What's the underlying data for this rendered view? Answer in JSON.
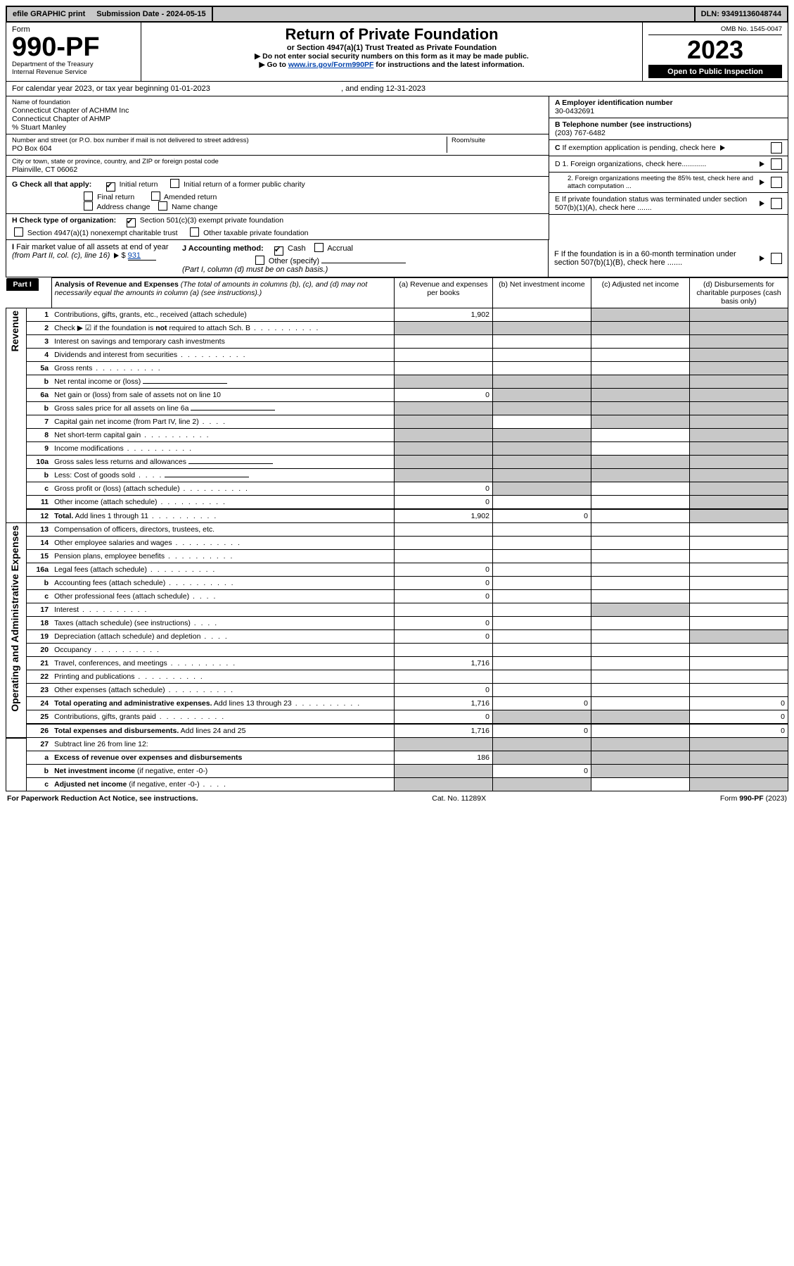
{
  "topbar": {
    "efile": "efile GRAPHIC print",
    "submission": "Submission Date - 2024-05-15",
    "dln": "DLN: 93491136048744"
  },
  "header": {
    "form_word": "Form",
    "form_no": "990-PF",
    "dept1": "Department of the Treasury",
    "dept2": "Internal Revenue Service",
    "title": "Return of Private Foundation",
    "subtitle": "or Section 4947(a)(1) Trust Treated as Private Foundation",
    "instr1": "▶ Do not enter social security numbers on this form as it may be made public.",
    "instr2_pre": "▶ Go to ",
    "instr2_link": "www.irs.gov/Form990PF",
    "instr2_post": " for instructions and the latest information.",
    "omb": "OMB No. 1545-0047",
    "year": "2023",
    "open": "Open to Public Inspection"
  },
  "cal": {
    "label": "For calendar year 2023, or tax year beginning ",
    "begin": "01-01-2023",
    "mid": " , and ending ",
    "end": "12-31-2023"
  },
  "meta": {
    "name_lbl": "Name of foundation",
    "name1": "Connecticut Chapter of ACHMM Inc",
    "name2": "Connecticut Chapter of AHMP",
    "name3": "% Stuart Manley",
    "addr_lbl": "Number and street (or P.O. box number if mail is not delivered to street address)",
    "addr": "PO Box 604",
    "room_lbl": "Room/suite",
    "city_lbl": "City or town, state or province, country, and ZIP or foreign postal code",
    "city": "Plainville, CT  06062",
    "A_lbl": "A Employer identification number",
    "A_val": "30-0432691",
    "B_lbl": "B Telephone number (see instructions)",
    "B_val": "(203) 767-6482",
    "C_lbl": "C If exemption application is pending, check here",
    "D1_lbl": "D 1. Foreign organizations, check here............",
    "D2_lbl": "2. Foreign organizations meeting the 85% test, check here and attach computation ...",
    "E_lbl": "E  If private foundation status was terminated under section 507(b)(1)(A), check here .......",
    "F_lbl": "F  If the foundation is in a 60-month termination under section 507(b)(1)(B), check here .......",
    "G_lbl": "G Check all that apply:",
    "G_opts": [
      "Initial return",
      "Initial return of a former public charity",
      "Final return",
      "Amended return",
      "Address change",
      "Name change"
    ],
    "H_lbl": "H Check type of organization:",
    "H_opts": [
      "Section 501(c)(3) exempt private foundation",
      "Section 4947(a)(1) nonexempt charitable trust",
      "Other taxable private foundation"
    ],
    "I_lbl": "I Fair market value of all assets at end of year (from Part II, col. (c), line 16) ",
    "I_val": "931",
    "J_lbl": "J Accounting method:",
    "J_opts": [
      "Cash",
      "Accrual",
      "Other (specify)"
    ],
    "J_note": "(Part I, column (d) must be on cash basis.)"
  },
  "part1": {
    "label": "Part I",
    "title": "Analysis of Revenue and Expenses",
    "title_note": " (The total of amounts in columns (b), (c), and (d) may not necessarily equal the amounts in column (a) (see instructions).)",
    "cols": {
      "a": "(a)   Revenue and expenses per books",
      "b": "(b)   Net investment income",
      "c": "(c)   Adjusted net income",
      "d": "(d)   Disbursements for charitable purposes (cash basis only)"
    },
    "sections": {
      "rev": "Revenue",
      "exp": "Operating and Administrative Expenses"
    },
    "rows": [
      {
        "n": "1",
        "t": "Contributions, gifts, grants, etc., received (attach schedule)",
        "a": "1,902",
        "d_shade": true,
        "c_shade": true
      },
      {
        "n": "2",
        "t": "Check ▶ ☑ if the foundation is <b>not</b> required to attach Sch. B",
        "dots": true,
        "a_shade": true,
        "b_shade": true,
        "c_shade": true,
        "d_shade": true
      },
      {
        "n": "3",
        "t": "Interest on savings and temporary cash investments",
        "d_shade": true
      },
      {
        "n": "4",
        "t": "Dividends and interest from securities",
        "dots": true,
        "d_shade": true
      },
      {
        "n": "5a",
        "t": "Gross rents",
        "dots": true,
        "d_shade": true
      },
      {
        "n": "b",
        "t": "Net rental income or (loss)",
        "uline": true,
        "a_shade": true,
        "b_shade": true,
        "c_shade": true,
        "d_shade": true
      },
      {
        "n": "6a",
        "t": "Net gain or (loss) from sale of assets not on line 10",
        "a": "0",
        "b_shade": true,
        "c_shade": true,
        "d_shade": true
      },
      {
        "n": "b",
        "t": "Gross sales price for all assets on line 6a",
        "uline": true,
        "a_shade": true,
        "b_shade": true,
        "c_shade": true,
        "d_shade": true
      },
      {
        "n": "7",
        "t": "Capital gain net income (from Part IV, line 2)",
        "dots_s": true,
        "a_shade": true,
        "c_shade": true,
        "d_shade": true
      },
      {
        "n": "8",
        "t": "Net short-term capital gain",
        "dots": true,
        "a_shade": true,
        "b_shade": true,
        "d_shade": true
      },
      {
        "n": "9",
        "t": "Income modifications",
        "dots": true,
        "a_shade": true,
        "b_shade": true,
        "d_shade": true
      },
      {
        "n": "10a",
        "t": "Gross sales less returns and allowances",
        "uline": true,
        "a_shade": true,
        "b_shade": true,
        "c_shade": true,
        "d_shade": true
      },
      {
        "n": "b",
        "t": "Less: Cost of goods sold",
        "dots_s": true,
        "uline": true,
        "a_shade": true,
        "b_shade": true,
        "c_shade": true,
        "d_shade": true
      },
      {
        "n": "c",
        "t": "Gross profit or (loss) (attach schedule)",
        "dots": true,
        "a": "0",
        "b_shade": true,
        "d_shade": true
      },
      {
        "n": "11",
        "t": "Other income (attach schedule)",
        "dots": true,
        "a": "0",
        "d_shade": true
      },
      {
        "n": "12",
        "t": "<b>Total.</b> Add lines 1 through 11",
        "dots": true,
        "a": "1,902",
        "b": "0",
        "d_shade": true,
        "sep": true
      },
      {
        "n": "13",
        "t": "Compensation of officers, directors, trustees, etc.",
        "sec": "exp"
      },
      {
        "n": "14",
        "t": "Other employee salaries and wages",
        "dots": true
      },
      {
        "n": "15",
        "t": "Pension plans, employee benefits",
        "dots": true
      },
      {
        "n": "16a",
        "t": "Legal fees (attach schedule)",
        "dots": true,
        "a": "0"
      },
      {
        "n": "b",
        "t": "Accounting fees (attach schedule)",
        "dots": true,
        "a": "0"
      },
      {
        "n": "c",
        "t": "Other professional fees (attach schedule)",
        "dots_s": true,
        "a": "0"
      },
      {
        "n": "17",
        "t": "Interest",
        "dots": true,
        "c_shade": true
      },
      {
        "n": "18",
        "t": "Taxes (attach schedule) (see instructions)",
        "dots_s": true,
        "a": "0"
      },
      {
        "n": "19",
        "t": "Depreciation (attach schedule) and depletion",
        "dots_s": true,
        "a": "0",
        "d_shade": true
      },
      {
        "n": "20",
        "t": "Occupancy",
        "dots": true
      },
      {
        "n": "21",
        "t": "Travel, conferences, and meetings",
        "dots": true,
        "a": "1,716"
      },
      {
        "n": "22",
        "t": "Printing and publications",
        "dots": true
      },
      {
        "n": "23",
        "t": "Other expenses (attach schedule)",
        "dots": true,
        "a": "0"
      },
      {
        "n": "24",
        "t": "<b>Total operating and administrative expenses.</b> Add lines 13 through 23",
        "dots": true,
        "a": "1,716",
        "b": "0",
        "d": "0"
      },
      {
        "n": "25",
        "t": "Contributions, gifts, grants paid",
        "dots": true,
        "a": "0",
        "b_shade": true,
        "c_shade": true,
        "d": "0"
      },
      {
        "n": "26",
        "t": "<b>Total expenses and disbursements.</b> Add lines 24 and 25",
        "a": "1,716",
        "b": "0",
        "d": "0",
        "sep": true
      },
      {
        "n": "27",
        "t": "Subtract line 26 from line 12:",
        "a_shade": true,
        "b_shade": true,
        "c_shade": true,
        "d_shade": true
      },
      {
        "n": "a",
        "t": "<b>Excess of revenue over expenses and disbursements</b>",
        "a": "186",
        "b_shade": true,
        "c_shade": true,
        "d_shade": true
      },
      {
        "n": "b",
        "t": "<b>Net investment income</b> (if negative, enter -0-)",
        "a_shade": true,
        "b": "0",
        "c_shade": true,
        "d_shade": true
      },
      {
        "n": "c",
        "t": "<b>Adjusted net income</b> (if negative, enter -0-)",
        "dots_s": true,
        "a_shade": true,
        "b_shade": true,
        "d_shade": true
      }
    ]
  },
  "footer": {
    "left": "For Paperwork Reduction Act Notice, see instructions.",
    "mid": "Cat. No. 11289X",
    "right": "Form 990-PF (2023)"
  },
  "colors": {
    "shade": "#c8c8c8",
    "link": "#0645ad"
  }
}
